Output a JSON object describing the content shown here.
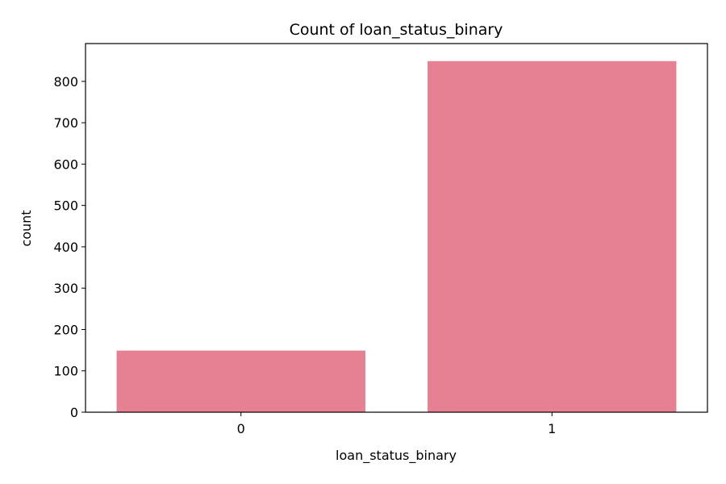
{
  "chart_data": {
    "type": "bar",
    "title": "Count of loan_status_binary",
    "xlabel": "loan_status_binary",
    "ylabel": "count",
    "categories": [
      "0",
      "1"
    ],
    "values": [
      149,
      849
    ],
    "ylim": [
      0,
      891.45
    ],
    "yticks": [
      0,
      100,
      200,
      300,
      400,
      500,
      600,
      700,
      800
    ],
    "grid": false,
    "bar_color": "#e68193",
    "axis_color": "#000000"
  }
}
